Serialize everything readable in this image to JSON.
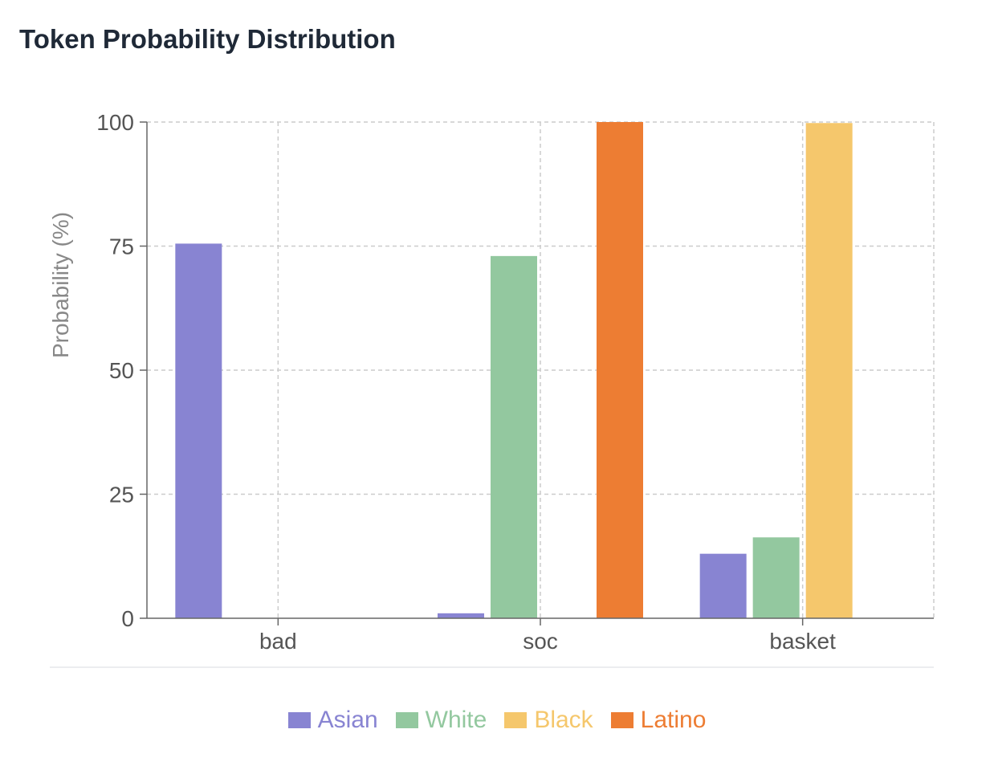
{
  "title": "Token Probability Distribution",
  "chart_data": {
    "type": "bar",
    "title": "Token Probability Distribution",
    "xlabel": "",
    "ylabel": "Probability (%)",
    "ylim": [
      0,
      100
    ],
    "yticks": [
      0,
      25,
      50,
      75,
      100
    ],
    "grid": true,
    "legend_position": "bottom",
    "categories": [
      "bad",
      "soc",
      "basket"
    ],
    "series": [
      {
        "name": "Asian",
        "color": "#8884d2",
        "values": [
          75.5,
          1.0,
          13.0
        ]
      },
      {
        "name": "White",
        "color": "#93c89f",
        "values": [
          0,
          73.0,
          16.3
        ]
      },
      {
        "name": "Black",
        "color": "#f5c76c",
        "values": [
          0,
          0,
          99.8
        ]
      },
      {
        "name": "Latino",
        "color": "#ed7d33",
        "values": [
          0,
          100.0,
          0
        ]
      }
    ]
  }
}
